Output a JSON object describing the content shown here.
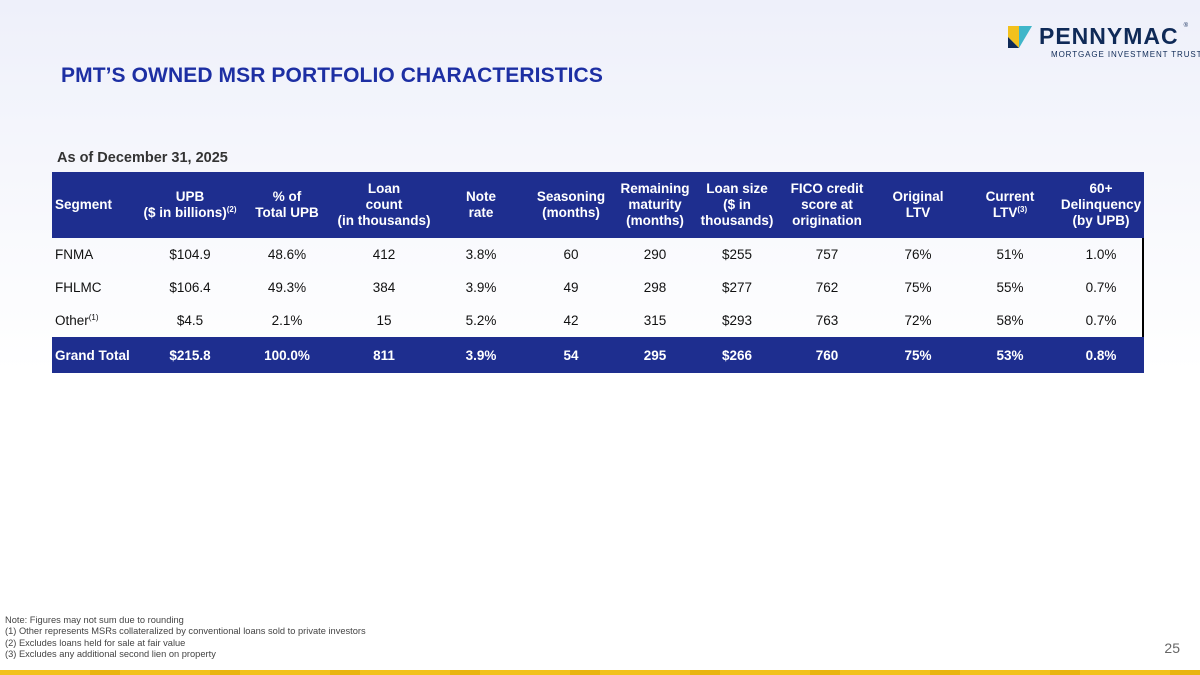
{
  "logo": {
    "name": "PENNYMAC",
    "registered": "®",
    "subtitle": "MORTGAGE INVESTMENT TRUST"
  },
  "title": "PMT’S OWNED MSR PORTFOLIO CHARACTERISTICS",
  "as_of": "As of December 31, 2025",
  "table": {
    "headers": {
      "segment": "Segment",
      "upb_1": "UPB",
      "upb_2": "($ in billions)",
      "upb_sup": "(2)",
      "pct_1": "% of",
      "pct_2": "Total UPB",
      "loan_count_1": "Loan",
      "loan_count_2": "count",
      "loan_count_3": "(in thousands)",
      "note_rate_1": "Note",
      "note_rate_2": "rate",
      "seasoning_1": "Seasoning",
      "seasoning_2": "(months)",
      "remaining_1": "Remaining",
      "remaining_2": "maturity",
      "remaining_3": "(months)",
      "loan_size_1": "Loan size",
      "loan_size_2": "($ in",
      "loan_size_3": "thousands)",
      "fico_1": "FICO credit",
      "fico_2": "score at",
      "fico_3": "origination",
      "orig_ltv_1": "Original",
      "orig_ltv_2": "LTV",
      "curr_ltv_1": "Current",
      "curr_ltv_2": "LTV",
      "curr_ltv_sup": "(3)",
      "delinq_1": "60+",
      "delinq_2": "Delinquency",
      "delinq_3": "(by UPB)"
    },
    "rows": [
      {
        "segment": "FNMA",
        "sup": "",
        "upb": "$104.9",
        "pct": "48.6%",
        "loan_count": "412",
        "note_rate": "3.8%",
        "seasoning": "60",
        "remaining": "290",
        "loan_size": "$255",
        "fico": "757",
        "orig_ltv": "76%",
        "curr_ltv": "51%",
        "delinq": "1.0%"
      },
      {
        "segment": "FHLMC",
        "sup": "",
        "upb": "$106.4",
        "pct": "49.3%",
        "loan_count": "384",
        "note_rate": "3.9%",
        "seasoning": "49",
        "remaining": "298",
        "loan_size": "$277",
        "fico": "762",
        "orig_ltv": "75%",
        "curr_ltv": "55%",
        "delinq": "0.7%"
      },
      {
        "segment": "Other",
        "sup": "(1)",
        "upb": "$4.5",
        "pct": "2.1%",
        "loan_count": "15",
        "note_rate": "5.2%",
        "seasoning": "42",
        "remaining": "315",
        "loan_size": "$293",
        "fico": "763",
        "orig_ltv": "72%",
        "curr_ltv": "58%",
        "delinq": "0.7%"
      }
    ],
    "total": {
      "segment": "Grand Total",
      "upb": "$215.8",
      "pct": "100.0%",
      "loan_count": "811",
      "note_rate": "3.9%",
      "seasoning": "54",
      "remaining": "295",
      "loan_size": "$266",
      "fico": "760",
      "orig_ltv": "75%",
      "curr_ltv": "53%",
      "delinq": "0.8%"
    }
  },
  "notes": [
    "Note: Figures may not sum due to rounding",
    "(1) Other represents MSRs collateralized by conventional loans sold to private investors",
    "(2) Excludes loans held for sale at fair value",
    "(3) Excludes any additional second lien on property"
  ],
  "page_number": "25",
  "colors": {
    "header_bg": "#1e2e8f",
    "title": "#1d2fa3",
    "logo_navy": "#0f2a57",
    "logo_gold": "#f2c11c",
    "logo_teal": "#3fb6c9"
  }
}
